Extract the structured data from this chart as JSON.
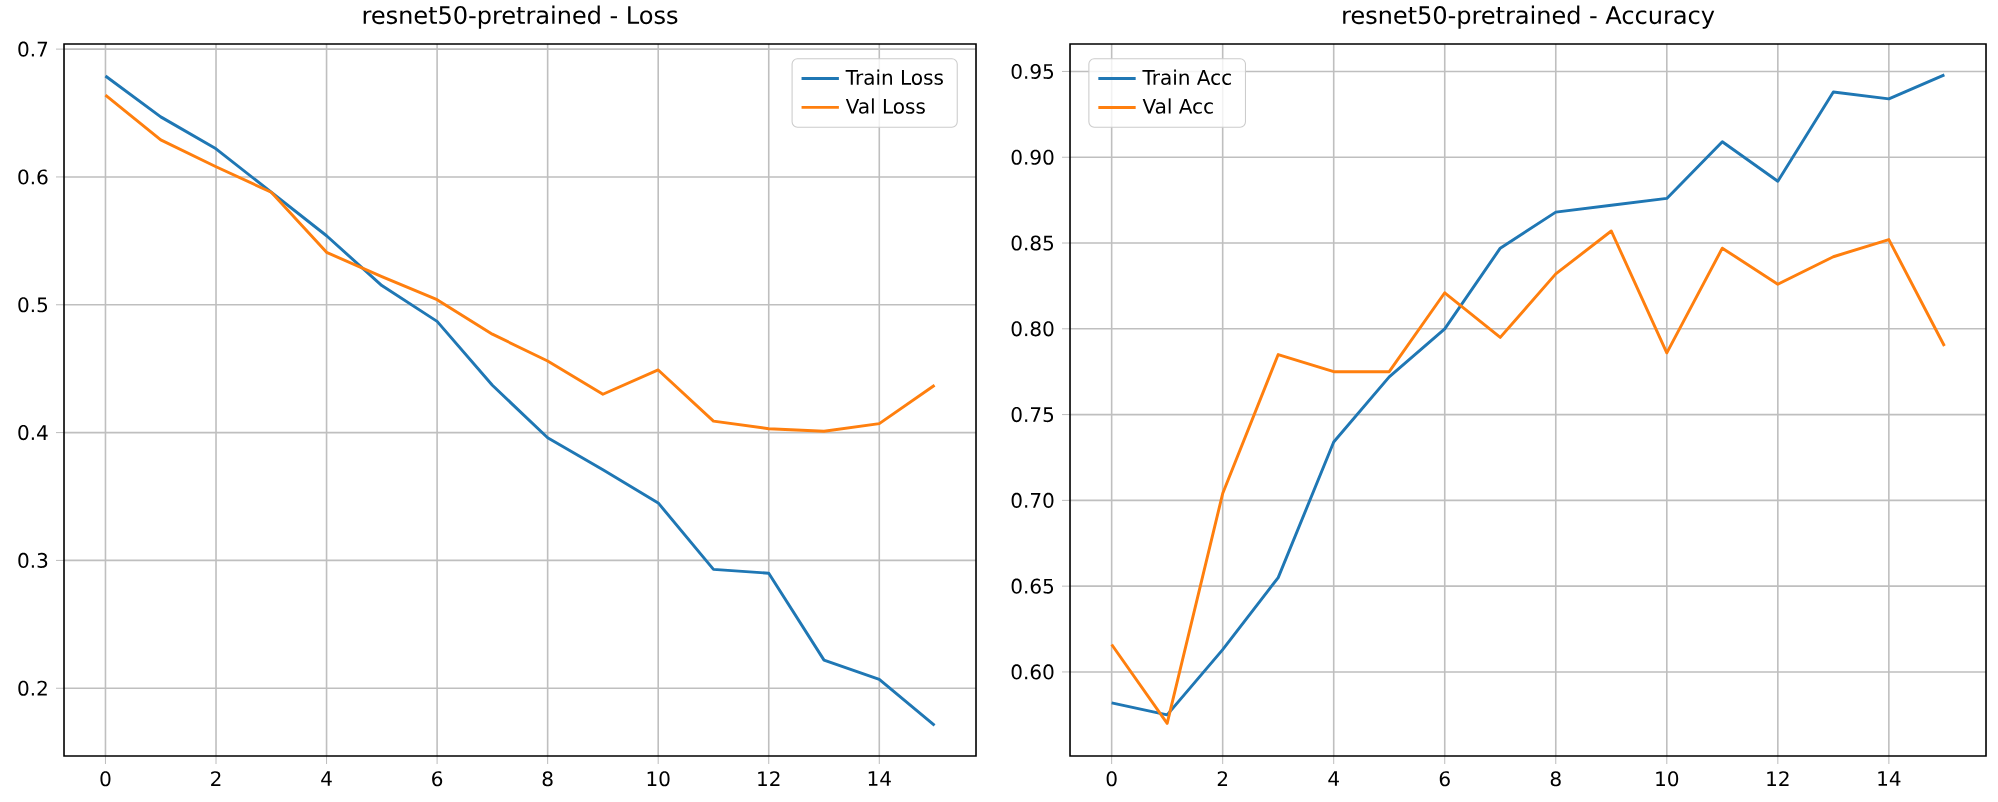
{
  "chart_data": [
    {
      "type": "line",
      "title": "resnet50-pretrained - Loss",
      "x": [
        0,
        1,
        2,
        3,
        4,
        5,
        6,
        7,
        8,
        9,
        10,
        11,
        12,
        13,
        14,
        15
      ],
      "series": [
        {
          "name": "Train Loss",
          "color": "#1f77b4",
          "values": [
            0.679,
            0.647,
            0.622,
            0.588,
            0.554,
            0.515,
            0.487,
            0.437,
            0.396,
            0.371,
            0.345,
            0.293,
            0.29,
            0.222,
            0.207,
            0.171
          ]
        },
        {
          "name": "Val Loss",
          "color": "#ff7f0e",
          "values": [
            0.664,
            0.629,
            0.608,
            0.588,
            0.541,
            0.522,
            0.504,
            0.477,
            0.456,
            0.43,
            0.449,
            0.409,
            0.403,
            0.401,
            0.407,
            0.437
          ]
        }
      ],
      "xlim": [
        -0.75,
        15.75
      ],
      "xticks": [
        0,
        2,
        4,
        6,
        8,
        10,
        12,
        14
      ],
      "ylim": [
        0.147,
        0.704
      ],
      "yticks": [
        0.2,
        0.3,
        0.4,
        0.5,
        0.6,
        0.7
      ],
      "grid": true,
      "legend": "top right"
    },
    {
      "type": "line",
      "title": "resnet50-pretrained - Accuracy",
      "x": [
        0,
        1,
        2,
        3,
        4,
        5,
        6,
        7,
        8,
        9,
        10,
        11,
        12,
        13,
        14,
        15
      ],
      "series": [
        {
          "name": "Train Acc",
          "color": "#1f77b4",
          "values": [
            0.582,
            0.575,
            0.613,
            0.655,
            0.734,
            0.772,
            0.8,
            0.847,
            0.868,
            0.872,
            0.876,
            0.909,
            0.886,
            0.938,
            0.934,
            0.948
          ]
        },
        {
          "name": "Val Acc",
          "color": "#ff7f0e",
          "values": [
            0.616,
            0.57,
            0.704,
            0.785,
            0.775,
            0.775,
            0.821,
            0.795,
            0.832,
            0.857,
            0.786,
            0.847,
            0.826,
            0.842,
            0.852,
            0.79
          ]
        }
      ],
      "xlim": [
        -0.75,
        15.75
      ],
      "xticks": [
        0,
        2,
        4,
        6,
        8,
        10,
        12,
        14
      ],
      "ylim": [
        0.551,
        0.966
      ],
      "yticks": [
        {
          "value": 0.6,
          "label": "0.60"
        },
        {
          "value": 0.65,
          "label": "0.65"
        },
        {
          "value": 0.7,
          "label": "0.70"
        },
        {
          "value": 0.75,
          "label": "0.75"
        },
        {
          "value": 0.8,
          "label": "0.80"
        },
        {
          "value": 0.85,
          "label": "0.85"
        },
        {
          "value": 0.9,
          "label": "0.90"
        },
        {
          "value": 0.95,
          "label": "0.95"
        }
      ],
      "grid": true,
      "legend": "top left"
    }
  ]
}
